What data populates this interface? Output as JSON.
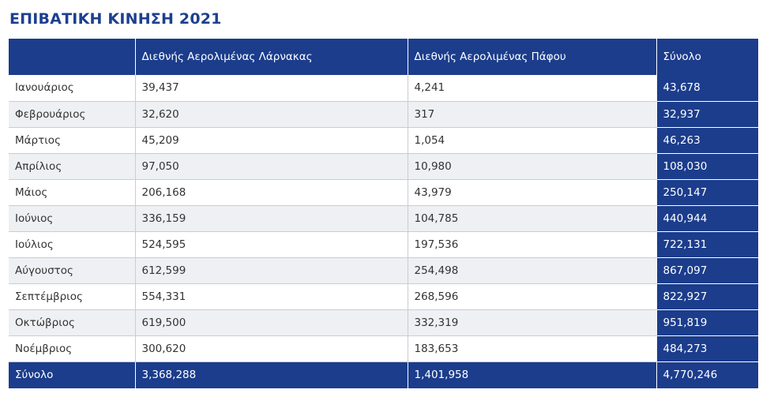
{
  "title": "ΕΠΙΒΑΤΙΚΗ ΚΙΝΗΣΗ 2021",
  "colors": {
    "accent": "#1c3d8c",
    "title": "#1d3f8f",
    "row_alt": "#eef0f3",
    "border": "#c9ccd3"
  },
  "table": {
    "headers": [
      "",
      "Διεθνής Αερολιμένας Λάρνακας",
      "Διεθνής Αερολιμένας Πάφου",
      "Σύνολο"
    ],
    "rows": [
      [
        "Ιανουάριος",
        "39,437",
        "4,241",
        "43,678"
      ],
      [
        "Φεβρουάριος",
        "32,620",
        "317",
        "32,937"
      ],
      [
        "Μάρτιος",
        "45,209",
        "1,054",
        "46,263"
      ],
      [
        "Απρίλιος",
        "97,050",
        "10,980",
        "108,030"
      ],
      [
        "Μάιος",
        "206,168",
        "43,979",
        "250,147"
      ],
      [
        "Ιούνιος",
        "336,159",
        "104,785",
        "440,944"
      ],
      [
        "Ιούλιος",
        "524,595",
        "197,536",
        "722,131"
      ],
      [
        "Αύγουστος",
        "612,599",
        "254,498",
        "867,097"
      ],
      [
        "Σεπτέμβριος",
        "554,331",
        "268,596",
        "822,927"
      ],
      [
        "Οκτώβριος",
        "619,500",
        "332,319",
        "951,819"
      ],
      [
        "Νοέμβριος",
        "300,620",
        "183,653",
        "484,273"
      ]
    ],
    "footer": [
      "Σύνολο",
      "3,368,288",
      "1,401,958",
      "4,770,246"
    ]
  }
}
